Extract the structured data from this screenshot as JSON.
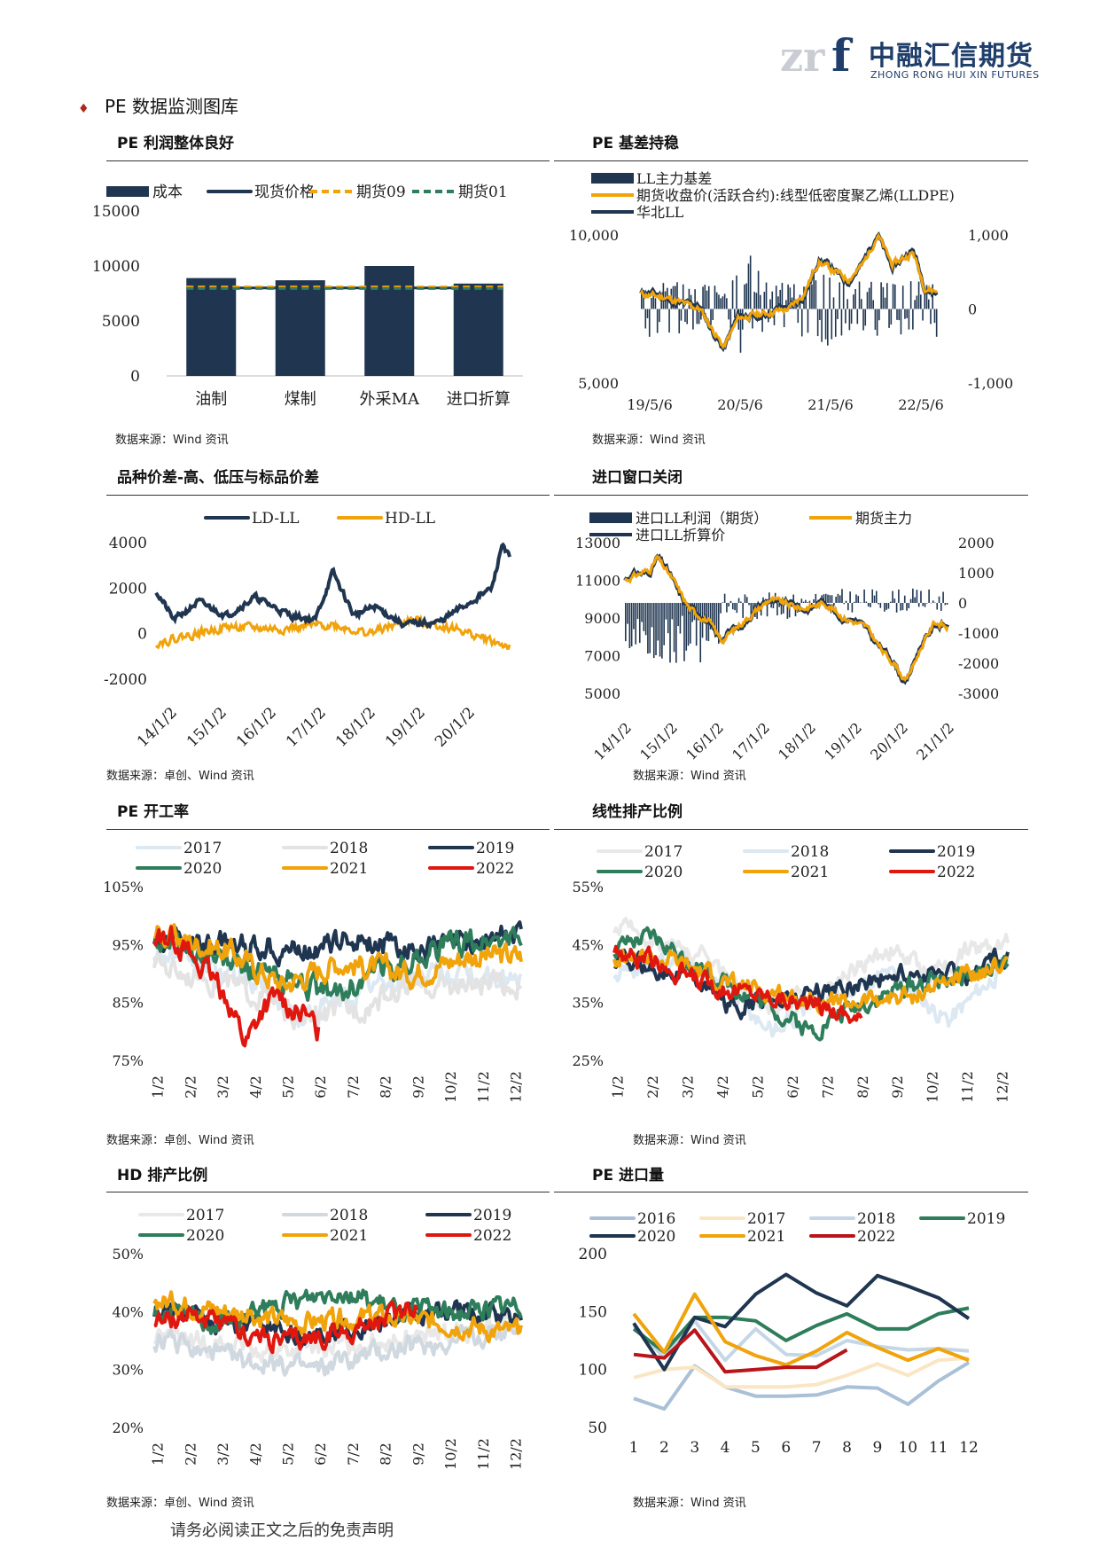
{
  "header": {
    "logo_cn": "中融汇信期货",
    "logo_en": "ZHONG RONG HUI XIN FUTURES",
    "logo_mark": "zrf",
    "page_title": "PE 数据监测图库",
    "bullet_icon": "diamond-bullet-icon"
  },
  "sections": [
    {
      "title": "PE 利润整体良好",
      "source": "数据来源：Wind 资讯"
    },
    {
      "title": "PE 基差持稳",
      "source": "数据来源：Wind 资讯"
    },
    {
      "title": "品种价差-高、低压与标品价差",
      "source": "数据来源：卓创、Wind 资讯"
    },
    {
      "title": "进口窗口关闭",
      "source": "数据来源：Wind 资讯"
    },
    {
      "title": "PE 开工率",
      "source": "数据来源：卓创、Wind 资讯"
    },
    {
      "title": "线性排产比例",
      "source": "数据来源：Wind 资讯"
    },
    {
      "title": "HD 排产比例",
      "source": "数据来源：卓创、Wind 资讯"
    },
    {
      "title": "PE 进口量",
      "source": "数据来源：Wind 资讯"
    }
  ],
  "footer": "请务必阅读正文之后的免责声明",
  "chart_data": [
    {
      "type": "bar",
      "categories": [
        "油制",
        "煤制",
        "外采MA",
        "进口折算"
      ],
      "series": [
        {
          "name": "成本",
          "kind": "bar",
          "color": "#1f3550",
          "values": [
            8900,
            8700,
            10000,
            8400
          ]
        },
        {
          "name": "现货价格",
          "kind": "line",
          "color": "#1f3550",
          "values": [
            8000,
            8000,
            8000,
            8000
          ]
        },
        {
          "name": "期货09",
          "kind": "dashed",
          "color": "#f0a30a",
          "values": [
            8100,
            8100,
            8100,
            8100
          ]
        },
        {
          "name": "期货01",
          "kind": "dashed",
          "color": "#2e7d5b",
          "values": [
            7950,
            7950,
            7950,
            7950
          ]
        }
      ],
      "ylim": [
        0,
        15000
      ],
      "yticks": [
        "15000",
        "10000",
        "5000",
        "0"
      ]
    },
    {
      "type": "line",
      "x_ticks": [
        "19/5/6",
        "20/5/6",
        "21/5/6",
        "22/5/6"
      ],
      "series": [
        {
          "name": "LL主力基差",
          "kind": "bar",
          "axis": "right",
          "color": "#1f3550"
        },
        {
          "name": "期货收盘价(活跃合约):线型低密度聚乙烯(LLDPE)",
          "kind": "line",
          "axis": "left",
          "color": "#f0a30a"
        },
        {
          "name": "华北LL",
          "kind": "line",
          "axis": "left",
          "color": "#1f3550"
        }
      ],
      "ylim": [
        5000,
        10000
      ],
      "y2lim": [
        -1000,
        1000
      ],
      "yticks": [
        "10,000",
        "5,000"
      ],
      "y2ticks": [
        "1,000",
        "0",
        "-1,000"
      ]
    },
    {
      "type": "line",
      "x_ticks": [
        "14/1/2",
        "15/1/2",
        "16/1/2",
        "17/1/2",
        "18/1/2",
        "19/1/2",
        "20/1/2"
      ],
      "series": [
        {
          "name": "LD-LL",
          "color": "#1f3550"
        },
        {
          "name": "HD-LL",
          "color": "#f0a30a"
        }
      ],
      "ylim": [
        -2000,
        4000
      ],
      "yticks": [
        "4000",
        "2000",
        "0",
        "-2000"
      ]
    },
    {
      "type": "line",
      "x_ticks": [
        "14/1/2",
        "15/1/2",
        "16/1/2",
        "17/1/2",
        "18/1/2",
        "19/1/2",
        "20/1/2",
        "21/1/2"
      ],
      "series": [
        {
          "name": "进口LL利润（期货）",
          "kind": "bar",
          "axis": "right",
          "color": "#1f3550"
        },
        {
          "name": "期货主力",
          "kind": "line",
          "axis": "left",
          "color": "#f0a30a"
        },
        {
          "name": "进口LL折算价",
          "kind": "line",
          "axis": "left",
          "color": "#1f3550"
        }
      ],
      "ylim": [
        5000,
        13000
      ],
      "y2lim": [
        -3000,
        2000
      ],
      "yticks": [
        "13000",
        "11000",
        "9000",
        "7000",
        "5000"
      ],
      "y2ticks": [
        "2000",
        "1000",
        "0",
        "-1000",
        "-2000",
        "-3000"
      ]
    },
    {
      "type": "line",
      "x_ticks": [
        "1/2",
        "2/2",
        "3/2",
        "4/2",
        "5/2",
        "6/2",
        "7/2",
        "8/2",
        "9/2",
        "10/2",
        "11/2",
        "12/2"
      ],
      "series": [
        {
          "name": "2017",
          "color": "#dce8f2"
        },
        {
          "name": "2018",
          "color": "#e3e3e3"
        },
        {
          "name": "2019",
          "color": "#1f3550"
        },
        {
          "name": "2020",
          "color": "#2e7d5b"
        },
        {
          "name": "2021",
          "color": "#f0a30a"
        },
        {
          "name": "2022",
          "color": "#e0170f"
        }
      ],
      "ylim": [
        75,
        105
      ],
      "yticks": [
        "105%",
        "95%",
        "85%",
        "75%"
      ]
    },
    {
      "type": "line",
      "x_ticks": [
        "1/2",
        "2/2",
        "3/2",
        "4/2",
        "5/2",
        "6/2",
        "7/2",
        "8/2",
        "9/2",
        "10/2",
        "11/2",
        "12/2"
      ],
      "series": [
        {
          "name": "2017",
          "color": "#e8e8e8"
        },
        {
          "name": "2018",
          "color": "#dce8f2"
        },
        {
          "name": "2019",
          "color": "#1f3550"
        },
        {
          "name": "2020",
          "color": "#2e7d5b"
        },
        {
          "name": "2021",
          "color": "#f0a30a"
        },
        {
          "name": "2022",
          "color": "#e0170f"
        }
      ],
      "ylim": [
        25,
        55
      ],
      "yticks": [
        "55%",
        "45%",
        "35%",
        "25%"
      ]
    },
    {
      "type": "line",
      "x_ticks": [
        "1/2",
        "2/2",
        "3/2",
        "4/2",
        "5/2",
        "6/2",
        "7/2",
        "8/2",
        "9/2",
        "10/2",
        "11/2",
        "12/2"
      ],
      "series": [
        {
          "name": "2017",
          "color": "#e8e8e8"
        },
        {
          "name": "2018",
          "color": "#d0d8e0"
        },
        {
          "name": "2019",
          "color": "#1f3550"
        },
        {
          "name": "2020",
          "color": "#2e7d5b"
        },
        {
          "name": "2021",
          "color": "#f0a30a"
        },
        {
          "name": "2022",
          "color": "#e0170f"
        }
      ],
      "ylim": [
        20,
        50
      ],
      "yticks": [
        "50%",
        "40%",
        "30%",
        "20%"
      ]
    },
    {
      "type": "line",
      "x_ticks": [
        "1",
        "2",
        "3",
        "4",
        "5",
        "6",
        "7",
        "8",
        "9",
        "10",
        "11",
        "12"
      ],
      "series": [
        {
          "name": "2016",
          "color": "#a9c0d6",
          "values": [
            75,
            66,
            103,
            85,
            77,
            77,
            78,
            85,
            84,
            70,
            90,
            106
          ]
        },
        {
          "name": "2017",
          "color": "#fbe6c4",
          "values": [
            93,
            100,
            102,
            85,
            85,
            85,
            87,
            95,
            105,
            95,
            108,
            110
          ]
        },
        {
          "name": "2018",
          "color": "#c5d6e6",
          "values": [
            138,
            110,
            142,
            108,
            135,
            113,
            112,
            125,
            120,
            117,
            118,
            116
          ]
        },
        {
          "name": "2019",
          "color": "#2e7d5b",
          "values": [
            135,
            115,
            145,
            145,
            142,
            125,
            138,
            148,
            135,
            135,
            148,
            153
          ]
        },
        {
          "name": "2020",
          "color": "#1f3550",
          "values": [
            140,
            100,
            145,
            137,
            165,
            182,
            166,
            155,
            181,
            172,
            162,
            144
          ]
        },
        {
          "name": "2021",
          "color": "#f0a30a",
          "values": [
            148,
            115,
            165,
            124,
            112,
            104,
            116,
            132,
            119,
            108,
            118,
            108
          ]
        },
        {
          "name": "2022",
          "color": "#b8141a",
          "values": [
            113,
            110,
            134,
            98,
            100,
            102,
            102,
            117
          ]
        }
      ],
      "ylim": [
        50,
        200
      ],
      "yticks": [
        "200",
        "150",
        "100",
        "50"
      ]
    }
  ]
}
